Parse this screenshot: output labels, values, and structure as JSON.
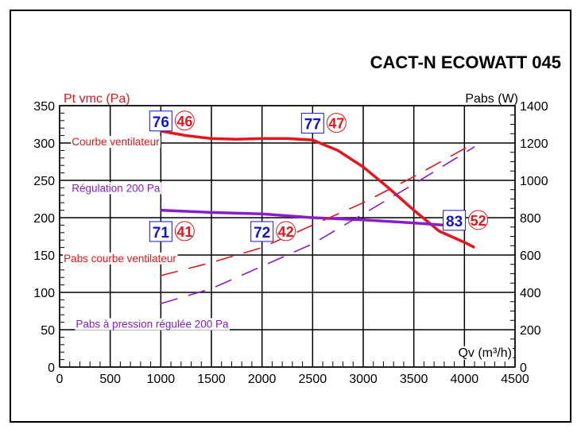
{
  "chart_data": {
    "type": "line",
    "title": "CACT-N ECOWATT 045",
    "ylabel_left": "Pt vmc (Pa)",
    "ylabel_right": "Pabs (W)",
    "xlabel": "Qv (m³/h)",
    "xlim": [
      0,
      4500
    ],
    "ylim_left": [
      0,
      350
    ],
    "ylim_right": [
      0,
      1400
    ],
    "xticks": [
      0,
      500,
      1000,
      1500,
      2000,
      2500,
      3000,
      3500,
      4000,
      4500
    ],
    "yticks_left": [
      0,
      50,
      100,
      150,
      200,
      250,
      300,
      350
    ],
    "yticks_right": [
      0,
      200,
      400,
      600,
      800,
      1000,
      1200,
      1400
    ],
    "grid": true,
    "colors": {
      "fan": "#e8141c",
      "regulation": "#8a1ccc",
      "box_blue": "#1414c8"
    },
    "series": [
      {
        "name": "Courbe ventilateur",
        "axis": "left",
        "style": "solid",
        "color": "#e8141c",
        "x": [
          1000,
          1250,
          1500,
          1750,
          2000,
          2250,
          2500,
          2750,
          3000,
          3250,
          3500,
          3750,
          4000,
          4100
        ],
        "y": [
          316,
          310,
          306,
          305,
          306,
          306,
          304,
          290,
          268,
          240,
          210,
          182,
          167,
          160
        ]
      },
      {
        "name": "Régulation 200 Pa",
        "axis": "left",
        "style": "solid",
        "color": "#8a1ccc",
        "x": [
          1000,
          1500,
          2000,
          2500,
          3000,
          3500,
          3800
        ],
        "y": [
          210,
          207,
          205,
          200,
          197,
          193,
          190
        ]
      },
      {
        "name": "Pabs courbe ventilateur",
        "axis": "right",
        "style": "dashed",
        "color": "#e8141c",
        "x": [
          1000,
          1500,
          2000,
          2500,
          3000,
          3500,
          4100
        ],
        "y": [
          490,
          560,
          640,
          760,
          880,
          1020,
          1200
        ]
      },
      {
        "name": "Pabs à pression régulée 200 Pa",
        "axis": "right",
        "style": "dashed",
        "color": "#8a1ccc",
        "x": [
          1000,
          1500,
          2000,
          2500,
          3000,
          3500,
          4100
        ],
        "y": [
          340,
          420,
          540,
          660,
          820,
          980,
          1180
        ]
      }
    ],
    "annotations": [
      {
        "x": 1000,
        "y": 330,
        "box": "76",
        "circle": "46"
      },
      {
        "x": 2500,
        "y": 327,
        "box": "77",
        "circle": "47"
      },
      {
        "x": 1000,
        "y": 182,
        "box": "71",
        "circle": "41"
      },
      {
        "x": 2000,
        "y": 182,
        "box": "72",
        "circle": "42"
      },
      {
        "x": 3900,
        "y": 197,
        "box": "83",
        "circle": "52"
      }
    ],
    "series_labels": [
      {
        "text": "Courbe ventilateur",
        "x": 120,
        "y": 302,
        "color": "#e8141c"
      },
      {
        "text": "Régulation 200 Pa",
        "x": 120,
        "y": 240,
        "color": "#8a1ccc"
      },
      {
        "text": "Pabs courbe ventilateur",
        "x": 40,
        "y": 146,
        "color": "#e8141c"
      },
      {
        "text": "Pabs à pression régulée 200 Pa",
        "x": 160,
        "y": 58,
        "color": "#8a1ccc"
      }
    ]
  }
}
